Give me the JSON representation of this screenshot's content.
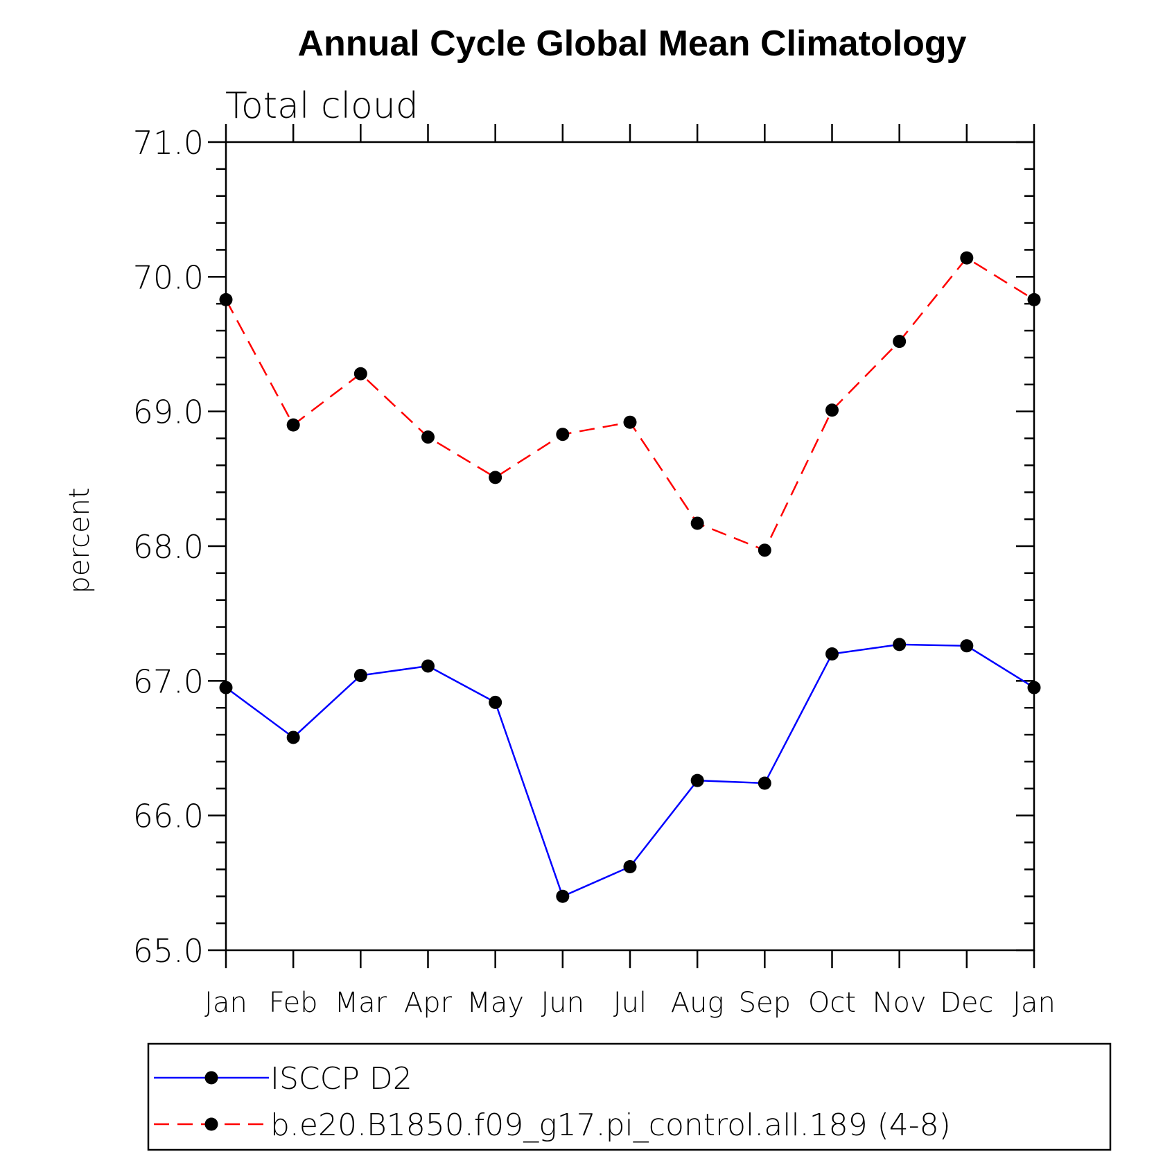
{
  "chart_data": {
    "type": "line",
    "title": "Annual Cycle Global Mean Climatology",
    "subtitle": "Total cloud",
    "ylabel": "percent",
    "xlabel": "",
    "ylim": [
      65.0,
      71.0
    ],
    "yticks": [
      "65.0",
      "66.0",
      "67.0",
      "68.0",
      "69.0",
      "70.0",
      "71.0"
    ],
    "categories": [
      "Jan",
      "Feb",
      "Mar",
      "Apr",
      "May",
      "Jun",
      "Jul",
      "Aug",
      "Sep",
      "Oct",
      "Nov",
      "Dec",
      "Jan"
    ],
    "legend_position": "bottom",
    "series": [
      {
        "name": "ISCCP D2",
        "color": "#0000ff",
        "dash": "solid",
        "values": [
          66.95,
          66.58,
          67.04,
          67.11,
          66.84,
          65.4,
          65.62,
          66.26,
          66.24,
          67.2,
          67.27,
          67.26,
          66.95
        ]
      },
      {
        "name": "b.e20.B1850.f09_g17.pi_control.all.189 (4-8)",
        "color": "#ff0000",
        "dash": "dashed",
        "values": [
          69.83,
          68.9,
          69.28,
          68.81,
          68.51,
          68.83,
          68.92,
          68.17,
          67.97,
          69.01,
          69.52,
          70.14,
          69.83
        ]
      }
    ]
  }
}
